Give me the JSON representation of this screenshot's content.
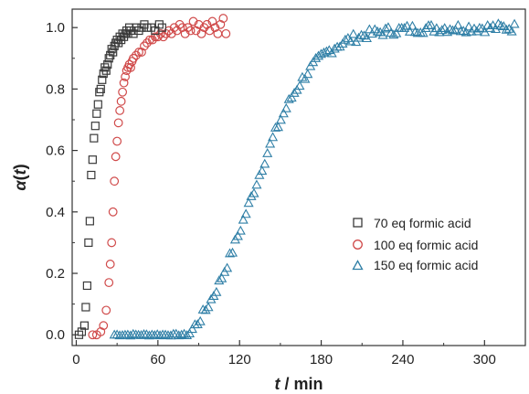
{
  "chart_data": {
    "type": "scatter",
    "title": "",
    "xlabel": {
      "var": "t",
      "unit": " / min"
    },
    "ylabel": {
      "var": "α",
      "arg": "t"
    },
    "xlim": [
      -3,
      330
    ],
    "ylim": [
      -0.035,
      1.06
    ],
    "xticks": [
      0,
      60,
      120,
      180,
      240,
      300
    ],
    "yticks": [
      0.0,
      0.2,
      0.4,
      0.6,
      0.8,
      1.0
    ],
    "xtick_labels": [
      "0",
      "60",
      "120",
      "180",
      "240",
      "300"
    ],
    "ytick_labels": [
      "0.0",
      "0.2",
      "0.4",
      "0.6",
      "0.8",
      "1.0"
    ],
    "grid": false,
    "legend_position": "center-right",
    "series": [
      {
        "name": "70 eq formic acid",
        "marker": "square",
        "color": "#3a3a3a",
        "x": [
          2,
          4,
          6,
          7,
          8,
          9,
          10,
          11,
          12,
          13,
          14,
          15,
          16,
          17,
          18,
          19,
          20,
          21,
          22,
          23,
          24,
          25,
          26,
          27,
          28,
          29,
          30,
          31,
          32,
          33,
          34,
          35,
          36,
          37,
          38,
          39,
          40,
          42,
          44,
          46,
          48,
          50,
          52,
          55,
          58,
          61,
          63
        ],
        "y": [
          0.0,
          0.01,
          0.03,
          0.09,
          0.16,
          0.3,
          0.37,
          0.52,
          0.57,
          0.64,
          0.68,
          0.72,
          0.75,
          0.79,
          0.8,
          0.83,
          0.85,
          0.87,
          0.86,
          0.88,
          0.9,
          0.91,
          0.93,
          0.92,
          0.94,
          0.95,
          0.96,
          0.95,
          0.97,
          0.96,
          0.98,
          0.97,
          0.98,
          0.99,
          0.98,
          1.0,
          0.99,
          0.98,
          1.0,
          0.99,
          1.0,
          1.01,
          1.0,
          1.0,
          0.99,
          1.01,
          1.0
        ]
      },
      {
        "name": "100 eq formic acid",
        "marker": "circle",
        "color": "#d04a4a",
        "x": [
          12,
          15,
          18,
          20,
          22,
          24,
          25,
          26,
          27,
          28,
          29,
          30,
          31,
          32,
          33,
          34,
          35,
          36,
          37,
          38,
          39,
          40,
          41,
          42,
          44,
          46,
          48,
          50,
          52,
          54,
          56,
          58,
          60,
          62,
          64,
          66,
          68,
          70,
          72,
          74,
          76,
          78,
          80,
          82,
          84,
          86,
          88,
          90,
          92,
          94,
          96,
          98,
          100,
          102,
          104,
          106,
          108,
          110
        ],
        "y": [
          0.0,
          0.0,
          0.01,
          0.03,
          0.08,
          0.17,
          0.23,
          0.3,
          0.4,
          0.5,
          0.58,
          0.63,
          0.69,
          0.73,
          0.76,
          0.79,
          0.82,
          0.84,
          0.86,
          0.87,
          0.88,
          0.87,
          0.89,
          0.9,
          0.91,
          0.92,
          0.92,
          0.94,
          0.95,
          0.96,
          0.96,
          0.97,
          0.97,
          0.98,
          0.97,
          0.98,
          0.99,
          0.98,
          1.0,
          0.99,
          1.01,
          1.0,
          0.98,
          1.0,
          0.99,
          1.02,
          0.99,
          1.01,
          0.98,
          1.0,
          1.01,
          0.99,
          1.02,
          1.0,
          0.98,
          1.01,
          1.03,
          0.98
        ]
      },
      {
        "name": "150 eq formic acid",
        "marker": "triangle",
        "color": "#2f7fa6",
        "generator": "sigmoid",
        "x_range": [
          28,
          322
        ],
        "n": 150,
        "midpoint": 128,
        "width": 22,
        "onset": 82,
        "noise": 0.015
      }
    ]
  }
}
